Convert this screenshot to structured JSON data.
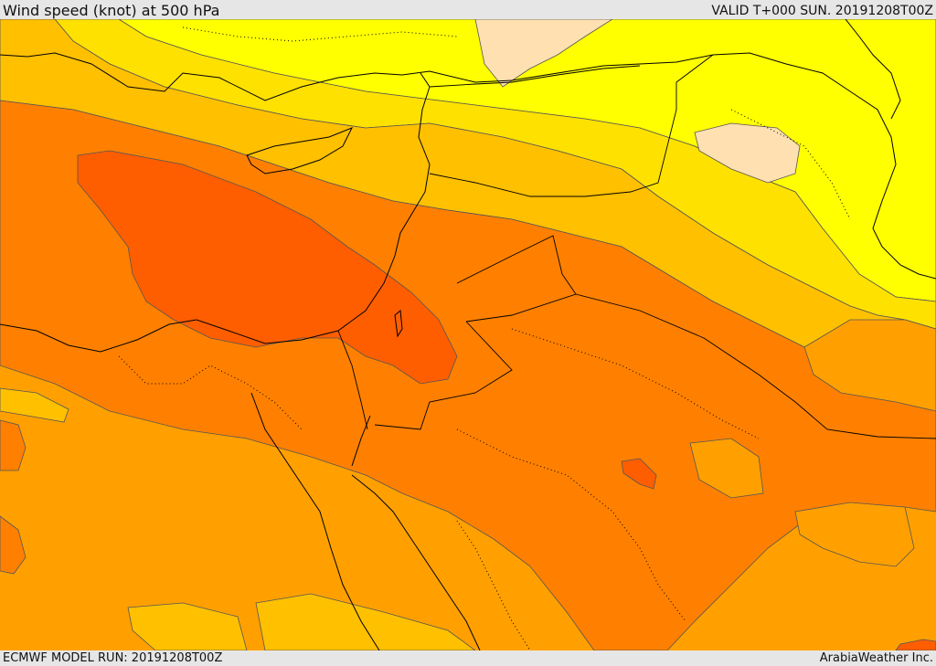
{
  "header": {
    "title": "Wind speed (knot) at 500 hPa",
    "valid": "VALID T+000 SUN. 20191208T00Z"
  },
  "footer": {
    "model_run": "ECMWF MODEL RUN: 20191208T00Z",
    "provider": "ArabiaWeather Inc."
  },
  "palette": {
    "band_lightest": "#ffe0b0",
    "band_1": "#ffff00",
    "band_2": "#ffe100",
    "band_3": "#ffc000",
    "band_4": "#ffa000",
    "band_5": "#ff8000",
    "band_6": "#ff5e00"
  }
}
